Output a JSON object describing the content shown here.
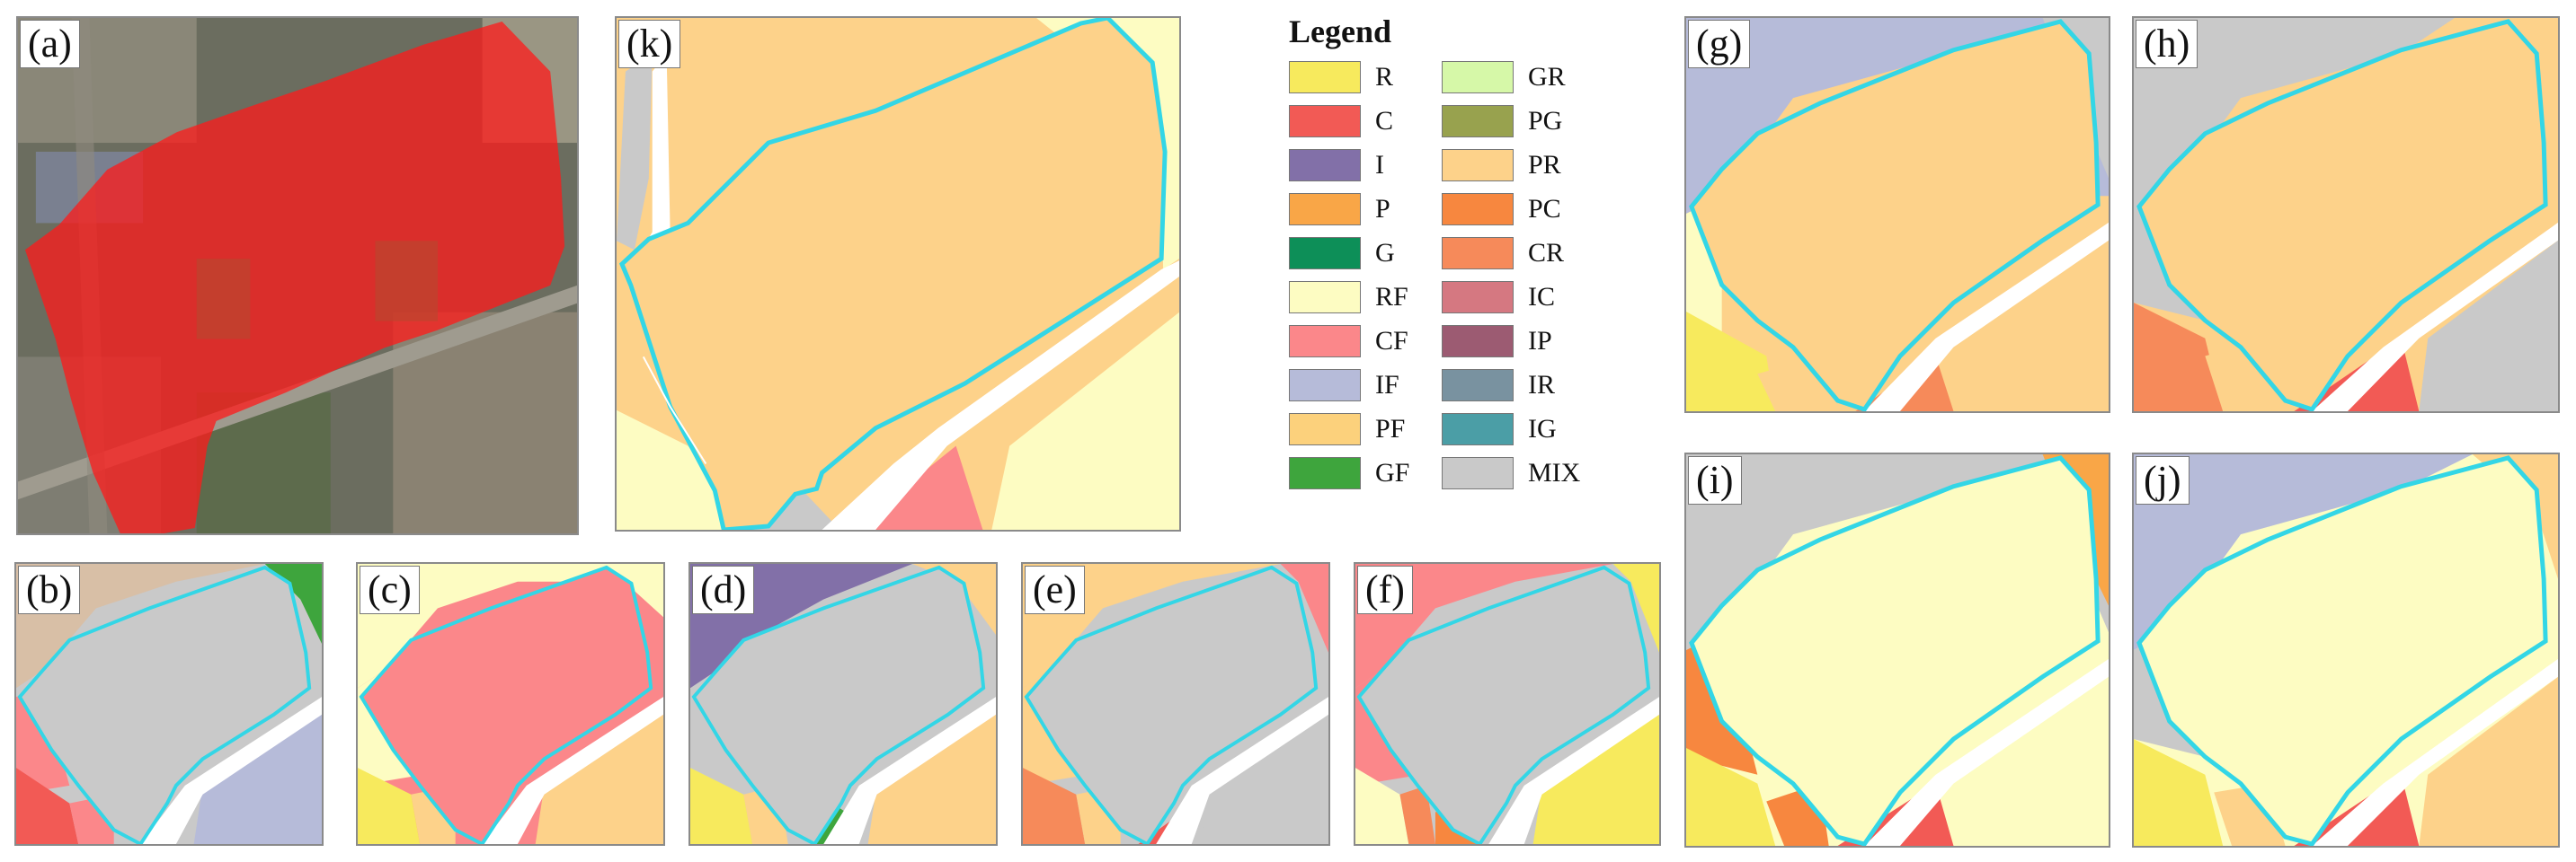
{
  "figure": {
    "panels": {
      "a": {
        "label": "(a)"
      },
      "k": {
        "label": "(k)"
      },
      "g": {
        "label": "(g)"
      },
      "h": {
        "label": "(h)"
      },
      "i": {
        "label": "(i)"
      },
      "j": {
        "label": "(j)"
      },
      "b": {
        "label": "(b)"
      },
      "c": {
        "label": "(c)"
      },
      "d": {
        "label": "(d)"
      },
      "e": {
        "label": "(e)"
      },
      "f": {
        "label": "(f)"
      }
    },
    "legend": {
      "title": "Legend",
      "items": [
        {
          "code": "R",
          "color": "#f7ea5d"
        },
        {
          "code": "C",
          "color": "#f25a55"
        },
        {
          "code": "I",
          "color": "#8270a8"
        },
        {
          "code": "P",
          "color": "#f9a647"
        },
        {
          "code": "G",
          "color": "#0d8f58"
        },
        {
          "code": "RF",
          "color": "#fdfcc2"
        },
        {
          "code": "CF",
          "color": "#fb878a"
        },
        {
          "code": "IF",
          "color": "#b6bbd9"
        },
        {
          "code": "PF",
          "color": "#fcd17c"
        },
        {
          "code": "GF",
          "color": "#3ea53d"
        },
        {
          "code": "GR",
          "color": "#d6f8a8"
        },
        {
          "code": "PG",
          "color": "#98a24e"
        },
        {
          "code": "PR",
          "color": "#fdd28a"
        },
        {
          "code": "PC",
          "color": "#f7873f"
        },
        {
          "code": "CR",
          "color": "#f68a5a"
        },
        {
          "code": "IC",
          "color": "#d57881"
        },
        {
          "code": "IP",
          "color": "#9c5b72"
        },
        {
          "code": "IR",
          "color": "#7992a0"
        },
        {
          "code": "IG",
          "color": "#4b9ea6"
        },
        {
          "code": "MIX",
          "color": "#c9c9c9"
        }
      ]
    },
    "target_outline_color": "#33d6e6",
    "satellite_overlay_color": "#ff0000"
  }
}
